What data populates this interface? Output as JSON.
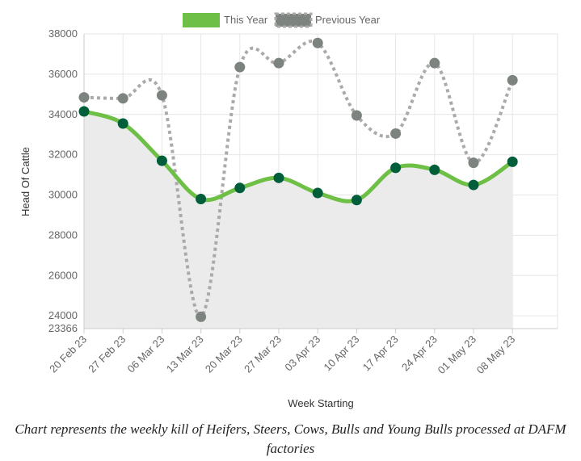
{
  "chart_data": {
    "type": "line",
    "xlabel": "Week Starting",
    "ylabel": "Head Of Cattle",
    "categories": [
      "20 Feb 23",
      "27 Feb 23",
      "06 Mar 23",
      "13 Mar 23",
      "20 Mar 23",
      "27 Mar 23",
      "03 Apr 23",
      "10 Apr 23",
      "17 Apr 23",
      "24 Apr 23",
      "01 May 23",
      "08 May 23"
    ],
    "ylim": [
      23366,
      38000
    ],
    "yticks": [
      23366,
      24000,
      26000,
      28000,
      30000,
      32000,
      34000,
      36000,
      38000
    ],
    "grid": true,
    "legend_position": "top",
    "series": [
      {
        "name": "This Year",
        "color": "#6dbf45",
        "marker_color": "#005e3a",
        "style": "solid",
        "area_fill": "#ebebeb",
        "values": [
          34150,
          33550,
          31700,
          29800,
          30350,
          30850,
          30100,
          29750,
          31350,
          31250,
          30500,
          31650
        ]
      },
      {
        "name": "Previous Year",
        "color": "#aaaaaa",
        "marker_color": "#7d8480",
        "style": "dotted",
        "values": [
          34850,
          34800,
          34950,
          23950,
          36350,
          36550,
          37550,
          33950,
          33050,
          36550,
          31600,
          35700
        ]
      }
    ]
  },
  "caption": "Chart represents the weekly kill of Heifers, Steers, Cows, Bulls and Young Bulls processed at DAFM factories"
}
